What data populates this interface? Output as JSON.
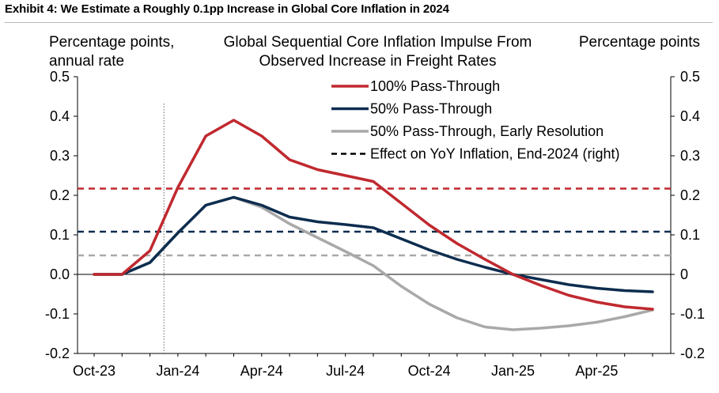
{
  "exhibit_title": "Exhibit 4: We Estimate a Roughly 0.1pp Increase in Global Core Inflation in 2024",
  "chart_data": {
    "type": "line",
    "title": "Global Sequential Core Inflation Impulse From Observed Increase in Freight Rates",
    "title_lines": [
      "Global Sequential Core Inflation Impulse From",
      "Observed Increase in Freight Rates"
    ],
    "ylabel_left_lines": [
      "Percentage points,",
      "annual rate"
    ],
    "ylabel_right": "Percentage points",
    "ylim": [
      -0.2,
      0.5
    ],
    "yticks": [
      -0.2,
      -0.1,
      0.0,
      0.1,
      0.2,
      0.3,
      0.4,
      0.5
    ],
    "ytick_labels_left": [
      "-0.2",
      "-0.1",
      "0.0",
      "0.1",
      "0.2",
      "0.3",
      "0.4",
      "0.5"
    ],
    "ytick_labels_right": [
      "-0.2",
      "-0.1",
      "0",
      "0.1",
      "0.2",
      "0.3",
      "0.4",
      "0.5"
    ],
    "x": [
      "2023-10",
      "2023-11",
      "2023-12",
      "2024-01",
      "2024-02",
      "2024-03",
      "2024-04",
      "2024-05",
      "2024-06",
      "2024-07",
      "2024-08",
      "2024-09",
      "2024-10",
      "2024-11",
      "2024-12",
      "2025-01",
      "2025-02",
      "2025-03",
      "2025-04",
      "2025-05",
      "2025-06"
    ],
    "xtick_labels": [
      "Oct-23",
      "Jan-24",
      "Apr-24",
      "Jul-24",
      "Oct-24",
      "Jan-25",
      "Apr-25"
    ],
    "xtick_positions": [
      "2023-10",
      "2024-01",
      "2024-04",
      "2024-07",
      "2024-10",
      "2025-01",
      "2025-04"
    ],
    "vertical_marker_x": "2023-12",
    "grid": false,
    "legend_position": "top-center",
    "series": [
      {
        "name": "100% Pass-Through",
        "color": "#c0292f",
        "values": [
          0.0,
          0.0,
          0.06,
          0.22,
          0.35,
          0.39,
          0.35,
          0.29,
          0.265,
          0.25,
          0.235,
          0.18,
          0.125,
          0.078,
          0.038,
          0.0,
          -0.028,
          -0.053,
          -0.07,
          -0.082,
          -0.088
        ]
      },
      {
        "name": "50% Pass-Through",
        "color": "#0d2d4f",
        "values": [
          0.0,
          0.0,
          0.03,
          0.105,
          0.175,
          0.195,
          0.175,
          0.145,
          0.133,
          0.126,
          0.118,
          0.09,
          0.062,
          0.038,
          0.018,
          0.0,
          -0.013,
          -0.026,
          -0.035,
          -0.041,
          -0.044
        ]
      },
      {
        "name": "50% Pass-Through, Early Resolution",
        "color": "#a9a9a9",
        "values": [
          0.0,
          0.0,
          0.03,
          0.105,
          0.175,
          0.195,
          0.17,
          0.128,
          0.093,
          0.058,
          0.022,
          -0.03,
          -0.075,
          -0.11,
          -0.133,
          -0.14,
          -0.136,
          -0.13,
          -0.121,
          -0.107,
          -0.09
        ]
      }
    ],
    "reference_lines": [
      {
        "name": "Effect on YoY Inflation, End-2024 (right)",
        "style": "dashed",
        "color": "#000000",
        "legend_only": true
      },
      {
        "name": "",
        "style": "dashed",
        "color": "#c0292f",
        "value": 0.217
      },
      {
        "name": "",
        "style": "dashed",
        "color": "#0d2d4f",
        "value": 0.108
      },
      {
        "name": "",
        "style": "dashed",
        "color": "#a9a9a9",
        "value": 0.048
      }
    ]
  }
}
